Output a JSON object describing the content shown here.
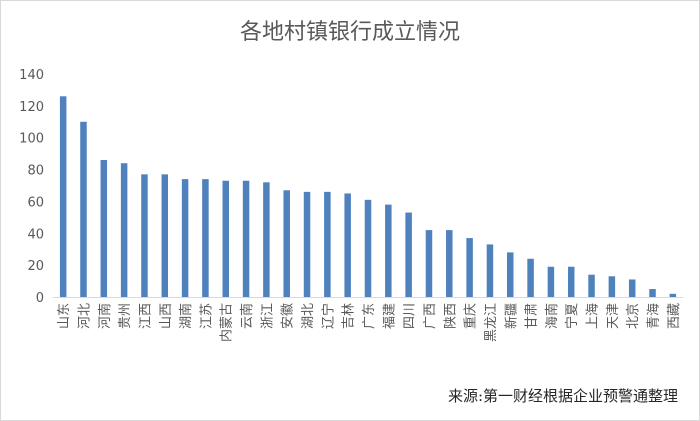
{
  "chart_data": {
    "type": "bar",
    "title": "各地村镇银行成立情况",
    "xlabel": "",
    "ylabel": "",
    "ylim": [
      0,
      140
    ],
    "yticks": [
      0,
      20,
      40,
      60,
      80,
      100,
      120,
      140
    ],
    "grid": false,
    "bar_color": "#4f81bd",
    "categories": [
      "山东",
      "河北",
      "河南",
      "贵州",
      "江西",
      "山西",
      "湖南",
      "江苏",
      "内蒙古",
      "云南",
      "浙江",
      "安徽",
      "湖北",
      "辽宁",
      "吉林",
      "广东",
      "福建",
      "四川",
      "广西",
      "陕西",
      "重庆",
      "黑龙江",
      "新疆",
      "甘肃",
      "海南",
      "宁夏",
      "上海",
      "天津",
      "北京",
      "青海",
      "西藏"
    ],
    "values": [
      126,
      110,
      86,
      84,
      77,
      77,
      74,
      74,
      73,
      73,
      72,
      67,
      66,
      66,
      65,
      61,
      58,
      53,
      42,
      42,
      37,
      33,
      28,
      24,
      19,
      19,
      14,
      13,
      11,
      5,
      2
    ]
  },
  "source": "来源:第一财经根据企业预警通整理"
}
